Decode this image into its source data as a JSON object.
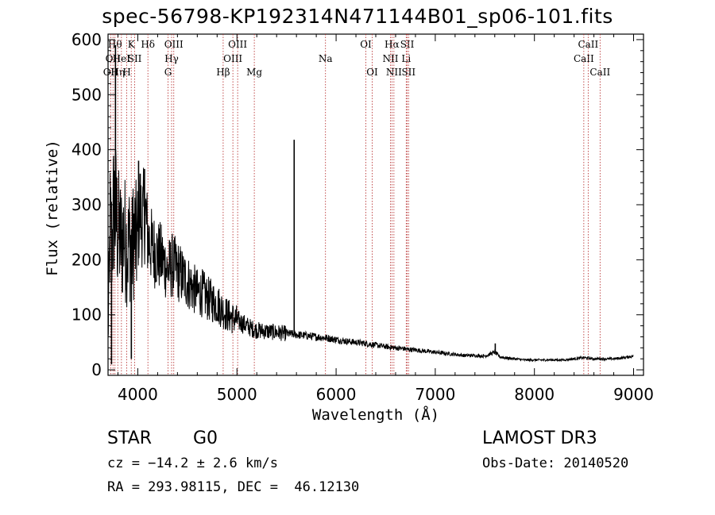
{
  "chart_data": {
    "type": "line",
    "title": "spec-56798-KP192314N471144B01_sp06-101.fits",
    "xlabel": "Wavelength (Å)",
    "ylabel": "Flux (relative)",
    "xlim": [
      3700,
      9100
    ],
    "ylim": [
      -10,
      610
    ],
    "xticks": [
      4000,
      5000,
      6000,
      7000,
      8000,
      9000
    ],
    "yticks": [
      0,
      100,
      200,
      300,
      400,
      500,
      600
    ],
    "spectrum": {
      "name": "flux",
      "x": [
        3700,
        3720,
        3740,
        3760,
        3780,
        3800,
        3820,
        3840,
        3860,
        3880,
        3900,
        3920,
        3940,
        3960,
        3980,
        4000,
        4020,
        4040,
        4060,
        4080,
        4100,
        4150,
        4200,
        4250,
        4300,
        4350,
        4400,
        4450,
        4500,
        4550,
        4600,
        4650,
        4700,
        4750,
        4800,
        4850,
        4900,
        4950,
        5000,
        5050,
        5100,
        5150,
        5200,
        5300,
        5400,
        5500,
        5600,
        5700,
        5800,
        5900,
        6000,
        6100,
        6200,
        6300,
        6400,
        6500,
        6600,
        6700,
        6800,
        6900,
        7000,
        7100,
        7200,
        7300,
        7400,
        7500,
        7600,
        7650,
        7700,
        7800,
        7900,
        8000,
        8100,
        8200,
        8300,
        8400,
        8500,
        8600,
        8700,
        8800,
        8900,
        9000
      ],
      "y": [
        50,
        260,
        230,
        300,
        280,
        250,
        240,
        230,
        250,
        230,
        220,
        240,
        210,
        250,
        230,
        240,
        300,
        270,
        280,
        280,
        240,
        220,
        210,
        200,
        180,
        190,
        180,
        170,
        160,
        150,
        140,
        140,
        130,
        125,
        120,
        110,
        100,
        95,
        90,
        85,
        80,
        75,
        72,
        70,
        68,
        66,
        64,
        62,
        60,
        58,
        55,
        52,
        50,
        48,
        45,
        42,
        40,
        38,
        36,
        34,
        32,
        30,
        28,
        26,
        26,
        25,
        32,
        24,
        22,
        20,
        18,
        18,
        18,
        18,
        18,
        20,
        22,
        20,
        20,
        20,
        22,
        25
      ]
    },
    "spikes": [
      {
        "x": 3735,
        "y": 10
      },
      {
        "x": 3775,
        "y": 590
      },
      {
        "x": 3935,
        "y": 20
      },
      {
        "x": 4008,
        "y": 380
      },
      {
        "x": 4068,
        "y": 365
      },
      {
        "x": 5577,
        "y": 418
      },
      {
        "x": 7605,
        "y": 48
      }
    ],
    "emission_lines": [
      {
        "x": 3727,
        "labels": [
          "OII"
        ],
        "row": 2
      },
      {
        "x": 3750,
        "labels": [
          "OII"
        ],
        "row": 1
      },
      {
        "x": 3770,
        "labels": [
          "Hθ"
        ],
        "row": 0
      },
      {
        "x": 3798,
        "labels": [
          "Hη"
        ],
        "row": 2
      },
      {
        "x": 3835,
        "labels": [
          "HeI"
        ],
        "row": 1
      },
      {
        "x": 3889,
        "labels": [
          "H"
        ],
        "row": 2
      },
      {
        "x": 3934,
        "labels": [
          "K"
        ],
        "row": 0
      },
      {
        "x": 3969,
        "labels": [
          "SII"
        ],
        "row": 1
      },
      {
        "x": 4102,
        "labels": [
          "Hδ"
        ],
        "row": 0
      },
      {
        "x": 4305,
        "labels": [
          "G"
        ],
        "row": 2
      },
      {
        "x": 4341,
        "labels": [
          "Hγ"
        ],
        "row": 1
      },
      {
        "x": 4363,
        "labels": [
          "OIII"
        ],
        "row": 0
      },
      {
        "x": 4861,
        "labels": [
          "Hβ"
        ],
        "row": 2
      },
      {
        "x": 4959,
        "labels": [
          "OIII"
        ],
        "row": 1
      },
      {
        "x": 5007,
        "labels": [
          "OIII"
        ],
        "row": 0
      },
      {
        "x": 5175,
        "labels": [
          "Mg"
        ],
        "row": 2
      },
      {
        "x": 5893,
        "labels": [
          "Na"
        ],
        "row": 1
      },
      {
        "x": 6300,
        "labels": [
          "OI"
        ],
        "row": 0
      },
      {
        "x": 6364,
        "labels": [
          "OI"
        ],
        "row": 2
      },
      {
        "x": 6548,
        "labels": [
          "NII"
        ],
        "row": 1
      },
      {
        "x": 6563,
        "labels": [
          "Hα"
        ],
        "row": 0
      },
      {
        "x": 6583,
        "labels": [
          "NII"
        ],
        "row": 2
      },
      {
        "x": 6707,
        "labels": [
          "Li"
        ],
        "row": 1
      },
      {
        "x": 6717,
        "labels": [
          "SII"
        ],
        "row": 0
      },
      {
        "x": 6731,
        "labels": [
          "SII"
        ],
        "row": 2
      },
      {
        "x": 8498,
        "labels": [
          "CaII"
        ],
        "row": 1
      },
      {
        "x": 8542,
        "labels": [
          "CaII"
        ],
        "row": 0
      },
      {
        "x": 8662,
        "labels": [
          "CaII"
        ],
        "row": 2
      }
    ],
    "line_color": "#000000",
    "emission_line_color": "#b22222"
  },
  "info": {
    "object_class": "STAR",
    "subclass": "G0",
    "survey": "LAMOST DR3",
    "cz": "cz = −14.2 ± 2.6 km/s",
    "obs_date": "Obs-Date: 20140520",
    "coords": "RA = 293.98115, DEC =  46.12130"
  }
}
